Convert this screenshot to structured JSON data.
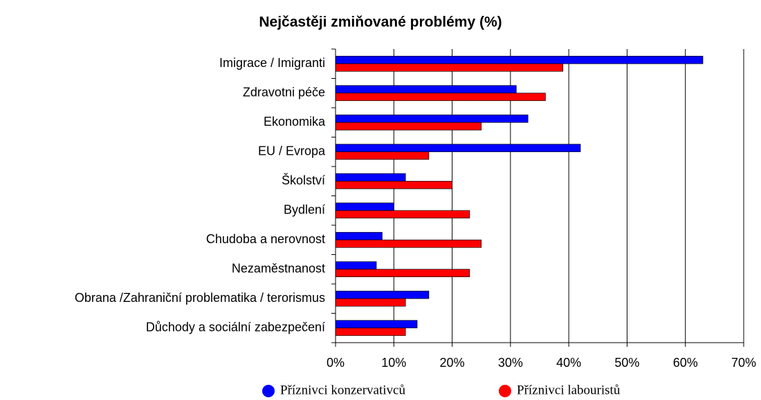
{
  "chart_data": {
    "type": "hbar",
    "title": "Nejčastěji zmiňované problémy (%)",
    "categories": [
      "Imigrace / Imigranti",
      "Zdravotni péče",
      "Ekonomika",
      "EU / Evropa",
      "Školství",
      "Bydlení",
      "Chudoba a nerovnost",
      "Nezaměstnanost",
      "Obrana /Zahraniční problematika / terorismus",
      "Důchody a sociální zabezpečení"
    ],
    "series": [
      {
        "name": "Příznivci konzervativců",
        "color": "#0000ff",
        "values": [
          63,
          31,
          33,
          42,
          12,
          10,
          8,
          7,
          16,
          14
        ]
      },
      {
        "name": "Příznivci labouristů",
        "color": "#ff0000",
        "values": [
          39,
          36,
          25,
          16,
          20,
          23,
          25,
          23,
          12,
          12
        ]
      }
    ],
    "xlim": [
      0,
      70
    ],
    "xticks": [
      {
        "value": 0,
        "label": "0%"
      },
      {
        "value": 10,
        "label": "10%"
      },
      {
        "value": 20,
        "label": "20%"
      },
      {
        "value": 30,
        "label": "30%"
      },
      {
        "value": 40,
        "label": "40%"
      },
      {
        "value": 50,
        "label": "50%"
      },
      {
        "value": 60,
        "label": "60%"
      },
      {
        "value": 70,
        "label": "70%"
      }
    ],
    "grid": true
  }
}
